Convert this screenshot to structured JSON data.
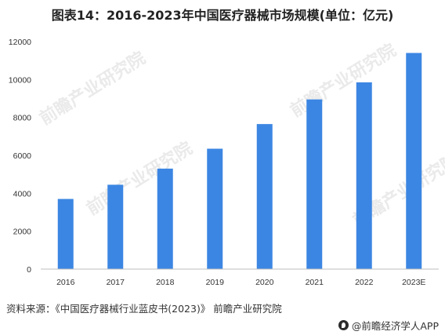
{
  "chart_data": {
    "type": "bar",
    "title": "图表14：2016-2023年中国医疗器械市场规模(单位：亿元)",
    "categories": [
      "2016",
      "2017",
      "2018",
      "2019",
      "2020",
      "2021",
      "2022",
      "2023E"
    ],
    "values": [
      3700,
      4450,
      5300,
      6350,
      7650,
      8950,
      9850,
      11400
    ],
    "ylim": [
      0,
      12000
    ],
    "yticks": [
      "0",
      "2000",
      "4000",
      "6000",
      "8000",
      "10000",
      "12000"
    ],
    "grid": false,
    "legend": "none",
    "bar_color": "#3c86e3"
  },
  "footer": {
    "source": "资料来源：《中国医疗器械行业蓝皮书(2023)》 前瞻产业研究院",
    "brand": "@前瞻经济学人APP"
  },
  "watermark": {
    "text": "前瞻产业研究院"
  },
  "colors": {
    "bar": "#3c86e3",
    "axis": "#bfbfbf",
    "text": "#333333"
  }
}
